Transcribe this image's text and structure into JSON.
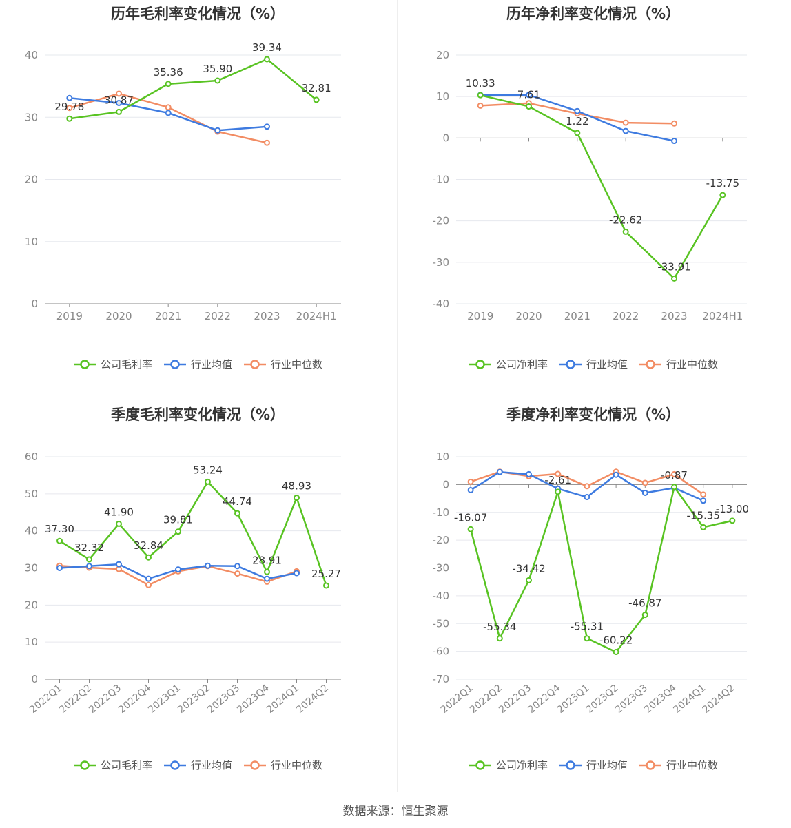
{
  "footer": {
    "source": "数据来源：恒生聚源"
  },
  "colors": {
    "company": "#58c322",
    "average": "#3e7be0",
    "median": "#f28c63",
    "grid": "#e6e8ee",
    "axis": "#888888",
    "label": "#333333"
  },
  "chart_data": [
    {
      "type": "line",
      "title": "历年毛利率变化情况（%）",
      "categories": [
        "2019",
        "2020",
        "2021",
        "2022",
        "2023",
        "2024H1"
      ],
      "ylim": [
        0,
        40
      ],
      "yticks": [
        0,
        10,
        20,
        30,
        40
      ],
      "grid": true,
      "legend_position": "bottom",
      "series": [
        {
          "name": "公司毛利率",
          "color": "#58c322",
          "labels": true,
          "values": [
            29.78,
            30.87,
            35.36,
            35.9,
            39.34,
            32.81
          ]
        },
        {
          "name": "行业均值",
          "color": "#3e7be0",
          "labels": false,
          "values": [
            33.1,
            32.3,
            30.7,
            27.9,
            28.5,
            null
          ]
        },
        {
          "name": "行业中位数",
          "color": "#f28c63",
          "labels": false,
          "values": [
            31.5,
            33.8,
            31.6,
            27.7,
            25.9,
            null
          ]
        }
      ]
    },
    {
      "type": "line",
      "title": "历年净利率变化情况（%）",
      "categories": [
        "2019",
        "2020",
        "2021",
        "2022",
        "2023",
        "2024H1"
      ],
      "ylim": [
        -40,
        20
      ],
      "yticks": [
        -40,
        -30,
        -20,
        -10,
        0,
        10,
        20
      ],
      "grid": true,
      "legend_position": "bottom",
      "series": [
        {
          "name": "公司净利率",
          "color": "#58c322",
          "labels": true,
          "values": [
            10.33,
            7.61,
            1.22,
            -22.62,
            -33.91,
            -13.75
          ]
        },
        {
          "name": "行业均值",
          "color": "#3e7be0",
          "labels": false,
          "values": [
            10.4,
            10.4,
            6.5,
            1.7,
            -0.7,
            null
          ]
        },
        {
          "name": "行业中位数",
          "color": "#f28c63",
          "labels": false,
          "values": [
            7.8,
            8.4,
            5.9,
            3.7,
            3.5,
            null
          ]
        }
      ]
    },
    {
      "type": "line",
      "title": "季度毛利率变化情况（%）",
      "categories": [
        "2022Q1",
        "2022Q2",
        "2022Q3",
        "2022Q4",
        "2023Q1",
        "2023Q2",
        "2023Q3",
        "2023Q4",
        "2024Q1",
        "2024Q2"
      ],
      "ylim": [
        0,
        60
      ],
      "yticks": [
        0,
        10,
        20,
        30,
        40,
        50,
        60
      ],
      "grid": true,
      "legend_position": "bottom",
      "series": [
        {
          "name": "公司毛利率",
          "color": "#58c322",
          "labels": true,
          "values": [
            37.3,
            32.32,
            41.9,
            32.84,
            39.81,
            53.24,
            44.74,
            28.91,
            48.93,
            25.27
          ]
        },
        {
          "name": "行业均值",
          "color": "#3e7be0",
          "labels": false,
          "values": [
            30.0,
            30.5,
            31.0,
            27.1,
            29.6,
            30.6,
            30.5,
            27.1,
            28.6,
            null
          ]
        },
        {
          "name": "行业中位数",
          "color": "#f28c63",
          "labels": false,
          "values": [
            30.6,
            30.1,
            29.7,
            25.4,
            29.1,
            30.5,
            28.5,
            26.3,
            29.1,
            null
          ]
        }
      ]
    },
    {
      "type": "line",
      "title": "季度净利率变化情况（%）",
      "categories": [
        "2022Q1",
        "2022Q2",
        "2022Q3",
        "2022Q4",
        "2023Q1",
        "2023Q2",
        "2023Q3",
        "2023Q4",
        "2024Q1",
        "2024Q2"
      ],
      "ylim": [
        -70,
        10
      ],
      "yticks": [
        -70,
        -60,
        -50,
        -40,
        -30,
        -20,
        -10,
        0,
        10
      ],
      "grid": true,
      "legend_position": "bottom",
      "series": [
        {
          "name": "公司净利率",
          "color": "#58c322",
          "labels": true,
          "values": [
            -16.07,
            -55.34,
            -34.42,
            -2.61,
            -55.31,
            -60.22,
            -46.87,
            -0.87,
            -15.35,
            -13.0
          ]
        },
        {
          "name": "行业均值",
          "color": "#3e7be0",
          "labels": false,
          "values": [
            -2.0,
            4.5,
            3.7,
            -1.5,
            -4.5,
            3.5,
            -3.0,
            -1.2,
            -5.8,
            null
          ]
        },
        {
          "name": "行业中位数",
          "color": "#f28c63",
          "labels": false,
          "values": [
            1.0,
            4.6,
            3.0,
            3.8,
            -0.6,
            4.6,
            0.6,
            3.7,
            -3.6,
            null
          ]
        }
      ]
    }
  ]
}
